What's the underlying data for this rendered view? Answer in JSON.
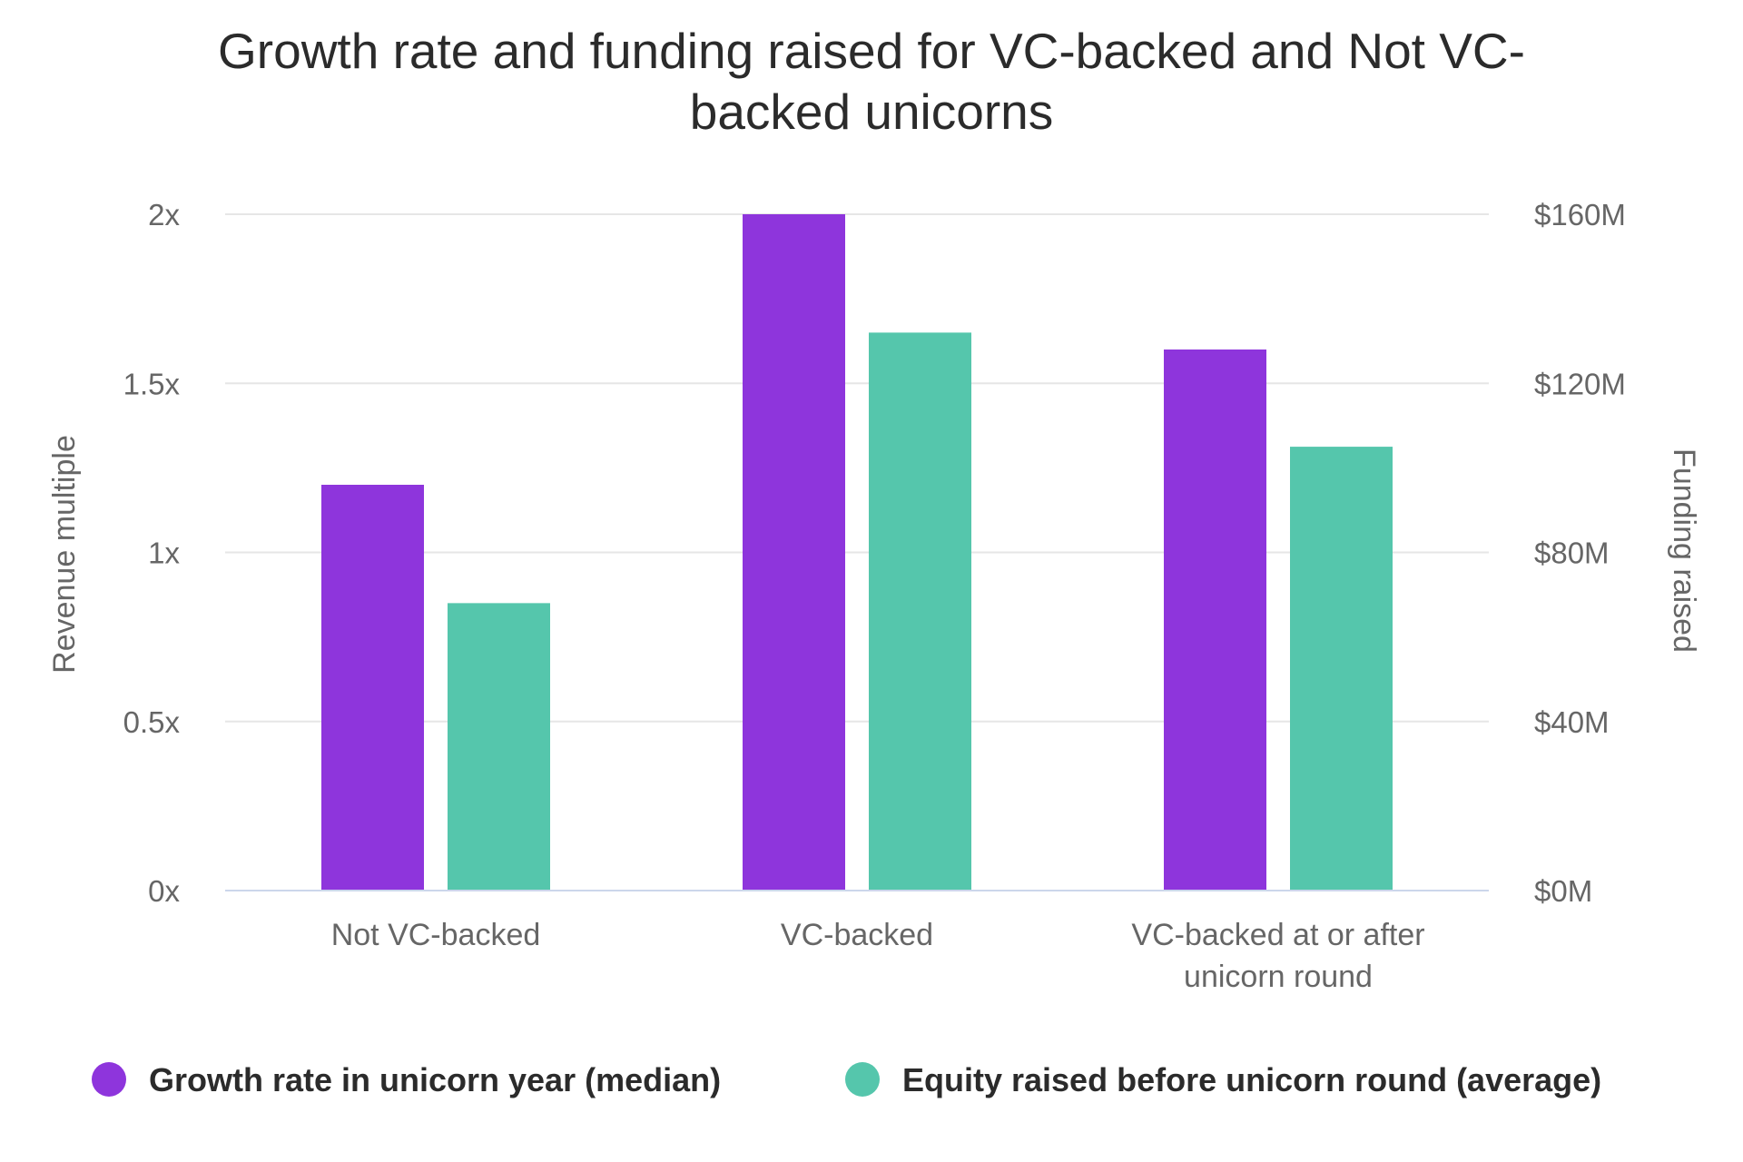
{
  "chart_data": {
    "type": "bar",
    "title_lines": [
      "Growth rate and funding raised for VC-backed and Not VC-",
      "backed unicorns"
    ],
    "categories": [
      [
        "Not VC-backed"
      ],
      [
        "VC-backed"
      ],
      [
        "VC-backed at or after",
        "unicorn round"
      ]
    ],
    "series": [
      {
        "name": "Growth rate in unicorn year (median)",
        "axis": "left",
        "color": "#8e35dc",
        "values": [
          1.2,
          2.0,
          1.6
        ]
      },
      {
        "name": "Equity raised before unicorn round (average)",
        "axis": "right",
        "color": "#55c6ac",
        "values": [
          68,
          132,
          105
        ]
      }
    ],
    "y_left": {
      "label": "Revenue multiple",
      "ylim": [
        0,
        2
      ],
      "ticks": [
        0,
        0.5,
        1,
        1.5,
        2
      ],
      "tick_labels": [
        "0x",
        "0.5x",
        "1x",
        "1.5x",
        "2x"
      ]
    },
    "y_right": {
      "label": "Funding raised",
      "ylim": [
        0,
        160
      ],
      "ticks": [
        0,
        40,
        80,
        120,
        160
      ],
      "tick_labels": [
        "$0M",
        "$40M",
        "$80M",
        "$120M",
        "$160M"
      ]
    },
    "grid": true,
    "legend_position": "bottom"
  }
}
